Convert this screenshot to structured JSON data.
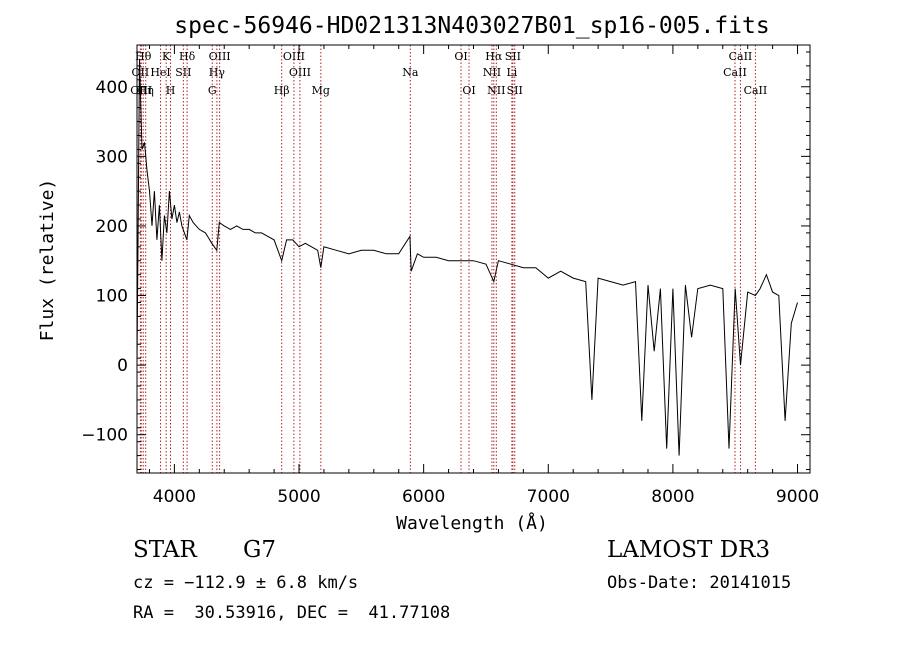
{
  "chart_data": {
    "type": "line",
    "title": "spec-56946-HD021313N403027B01_sp16-005.fits",
    "xlabel": "Wavelength (Å)",
    "ylabel": "Flux (relative)",
    "xlim": [
      3700,
      9100
    ],
    "ylim": [
      -155,
      460
    ],
    "x_ticks": [
      4000,
      5000,
      6000,
      7000,
      8000,
      9000
    ],
    "y_ticks": [
      -100,
      0,
      100,
      200,
      300,
      400
    ],
    "grid": false,
    "series": [
      {
        "x": [
          3700,
          3720,
          3740,
          3760,
          3780,
          3800,
          3820,
          3840,
          3860,
          3880,
          3900,
          3920,
          3940,
          3960,
          3980,
          4000,
          4020,
          4040,
          4060,
          4080,
          4100,
          4120,
          4150,
          4200,
          4250,
          4300,
          4340,
          4360,
          4400,
          4450,
          4500,
          4550,
          4600,
          4650,
          4700,
          4750,
          4800,
          4861,
          4900,
          4950,
          5000,
          5050,
          5100,
          5150,
          5175,
          5200,
          5300,
          5400,
          5500,
          5600,
          5700,
          5800,
          5890,
          5900,
          5950,
          6000,
          6100,
          6200,
          6300,
          6400,
          6500,
          6563,
          6600,
          6700,
          6800,
          6900,
          7000,
          7100,
          7200,
          7300,
          7350,
          7400,
          7500,
          7600,
          7700,
          7750,
          7800,
          7850,
          7900,
          7950,
          8000,
          8050,
          8100,
          8150,
          8200,
          8300,
          8400,
          8450,
          8500,
          8542,
          8600,
          8662,
          8700,
          8750,
          8800,
          8850,
          8900,
          8950,
          9000
        ],
        "y": [
          0,
          440,
          310,
          320,
          280,
          250,
          200,
          250,
          180,
          230,
          150,
          215,
          190,
          250,
          210,
          230,
          205,
          220,
          200,
          190,
          180,
          215,
          205,
          195,
          190,
          175,
          165,
          205,
          200,
          195,
          200,
          195,
          195,
          190,
          190,
          185,
          180,
          150,
          180,
          180,
          170,
          175,
          170,
          165,
          140,
          170,
          165,
          160,
          165,
          165,
          160,
          160,
          185,
          135,
          160,
          155,
          155,
          150,
          150,
          150,
          145,
          120,
          150,
          145,
          140,
          140,
          125,
          135,
          125,
          120,
          -50,
          125,
          120,
          115,
          120,
          -80,
          115,
          20,
          110,
          -120,
          110,
          -130,
          115,
          40,
          110,
          115,
          110,
          -120,
          110,
          0,
          105,
          100,
          110,
          130,
          105,
          100,
          -80,
          60,
          90
        ]
      }
    ],
    "line_markers": [
      {
        "wavelength": 3750,
        "label": "Hθ",
        "row": 0
      },
      {
        "wavelength": 3727,
        "label": "OII",
        "row": 1
      },
      {
        "wavelength": 3734,
        "label": "OIII",
        "row": 2
      },
      {
        "wavelength": 3770,
        "label": "Hη",
        "row": 2
      },
      {
        "wavelength": 3889,
        "label": "HeI",
        "row": 1
      },
      {
        "wavelength": 3934,
        "label": "K",
        "row": 0
      },
      {
        "wavelength": 3969,
        "label": "H",
        "row": 2
      },
      {
        "wavelength": 4072,
        "label": "SII",
        "row": 1
      },
      {
        "wavelength": 4102,
        "label": "Hδ",
        "row": 0
      },
      {
        "wavelength": 4341,
        "label": "Hγ",
        "row": 1
      },
      {
        "wavelength": 4363,
        "label": "OIII",
        "row": 0
      },
      {
        "wavelength": 4304,
        "label": "G",
        "row": 2
      },
      {
        "wavelength": 4861,
        "label": "Hβ",
        "row": 2
      },
      {
        "wavelength": 4959,
        "label": "OIII",
        "row": 0
      },
      {
        "wavelength": 5007,
        "label": "OIII",
        "row": 1
      },
      {
        "wavelength": 5175,
        "label": "Mg",
        "row": 2
      },
      {
        "wavelength": 5893,
        "label": "Na",
        "row": 1
      },
      {
        "wavelength": 6300,
        "label": "OI",
        "row": 0
      },
      {
        "wavelength": 6364,
        "label": "OI",
        "row": 2
      },
      {
        "wavelength": 6563,
        "label": "Hα",
        "row": 0
      },
      {
        "wavelength": 6548,
        "label": "NII",
        "row": 1
      },
      {
        "wavelength": 6583,
        "label": "NII",
        "row": 2
      },
      {
        "wavelength": 6716,
        "label": "SII",
        "row": 0
      },
      {
        "wavelength": 6708,
        "label": "Li",
        "row": 1
      },
      {
        "wavelength": 6731,
        "label": "SII",
        "row": 2
      },
      {
        "wavelength": 8498,
        "label": "CaII",
        "row": 1
      },
      {
        "wavelength": 8542,
        "label": "CaII",
        "row": 0
      },
      {
        "wavelength": 8662,
        "label": "CaII",
        "row": 2
      }
    ]
  },
  "info": {
    "object_class": "STAR",
    "subclass": "G7",
    "survey": "LAMOST DR3",
    "redshift": "cz = −112.9 ± 6.8 km/s",
    "obs_date": "Obs-Date: 20141015",
    "coords": "RA =  30.53916, DEC =  41.77108"
  }
}
